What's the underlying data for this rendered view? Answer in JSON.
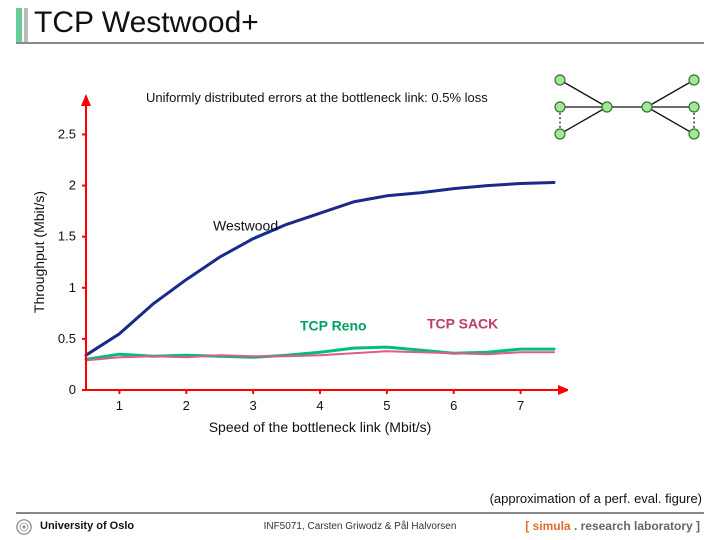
{
  "title": "TCP Westwood+",
  "subtitle": "Uniformly distributed errors at the bottleneck link: 0.5% loss",
  "ylabel": "Throughput (Mbit/s)",
  "xlabel": "Speed of the bottleneck link (Mbit/s)",
  "approx_note": "(approximation of a perf. eval. figure)",
  "footer": {
    "org": "University of Oslo",
    "course": "INF5071, Carsten Griwodz & Pål Halvorsen",
    "simula_br": "[ simula",
    "simula_txt": " . research laboratory ]"
  },
  "chart": {
    "type": "line",
    "xlim": [
      0.5,
      7.5
    ],
    "ylim": [
      0,
      2.7
    ],
    "xticks": [
      1,
      2,
      3,
      4,
      5,
      6,
      7
    ],
    "yticks": [
      0,
      0.5,
      1,
      1.5,
      2,
      2.5
    ],
    "ytick_labels": [
      "0",
      "0.5",
      "1",
      "1.5",
      "2",
      "2.5"
    ],
    "axis_color": "#ff0000",
    "axis_width": 2,
    "grid": false,
    "series": [
      {
        "name": "Westwood",
        "label": "Westwood",
        "color": "#1a2a8a",
        "width": 3,
        "x": [
          0.5,
          1,
          1.5,
          2,
          2.5,
          3,
          3.5,
          4,
          4.5,
          5,
          5.5,
          6,
          6.5,
          7,
          7.5
        ],
        "y": [
          0.34,
          0.55,
          0.84,
          1.08,
          1.3,
          1.48,
          1.62,
          1.73,
          1.84,
          1.9,
          1.93,
          1.97,
          2.0,
          2.02,
          2.03
        ]
      },
      {
        "name": "TCP Reno",
        "label": "TCP Reno",
        "color": "#00c078",
        "width": 3,
        "x": [
          0.5,
          1,
          1.5,
          2,
          2.5,
          3,
          3.5,
          4,
          4.5,
          5,
          5.5,
          6,
          6.5,
          7,
          7.5
        ],
        "y": [
          0.3,
          0.35,
          0.33,
          0.34,
          0.33,
          0.32,
          0.34,
          0.37,
          0.41,
          0.42,
          0.39,
          0.36,
          0.37,
          0.4,
          0.4
        ]
      },
      {
        "name": "TCP SACK",
        "label": "TCP SACK",
        "color": "#e05a8a",
        "width": 2,
        "x": [
          0.5,
          1,
          1.5,
          2,
          2.5,
          3,
          3.5,
          4,
          4.5,
          5,
          5.5,
          6,
          6.5,
          7,
          7.5
        ],
        "y": [
          0.29,
          0.32,
          0.33,
          0.32,
          0.34,
          0.33,
          0.33,
          0.34,
          0.36,
          0.38,
          0.37,
          0.36,
          0.35,
          0.37,
          0.37
        ]
      }
    ],
    "series_labels": [
      {
        "text": "Westwood",
        "color": "#111111",
        "font_weight": "normal",
        "x": 2.4,
        "y": 1.56
      },
      {
        "text": "TCP Reno",
        "color": "#00a060",
        "font_weight": "bold",
        "x": 3.7,
        "y": 0.58
      },
      {
        "text": "TCP SACK",
        "color": "#c03a6a",
        "font_weight": "bold",
        "x": 5.6,
        "y": 0.6
      }
    ]
  }
}
